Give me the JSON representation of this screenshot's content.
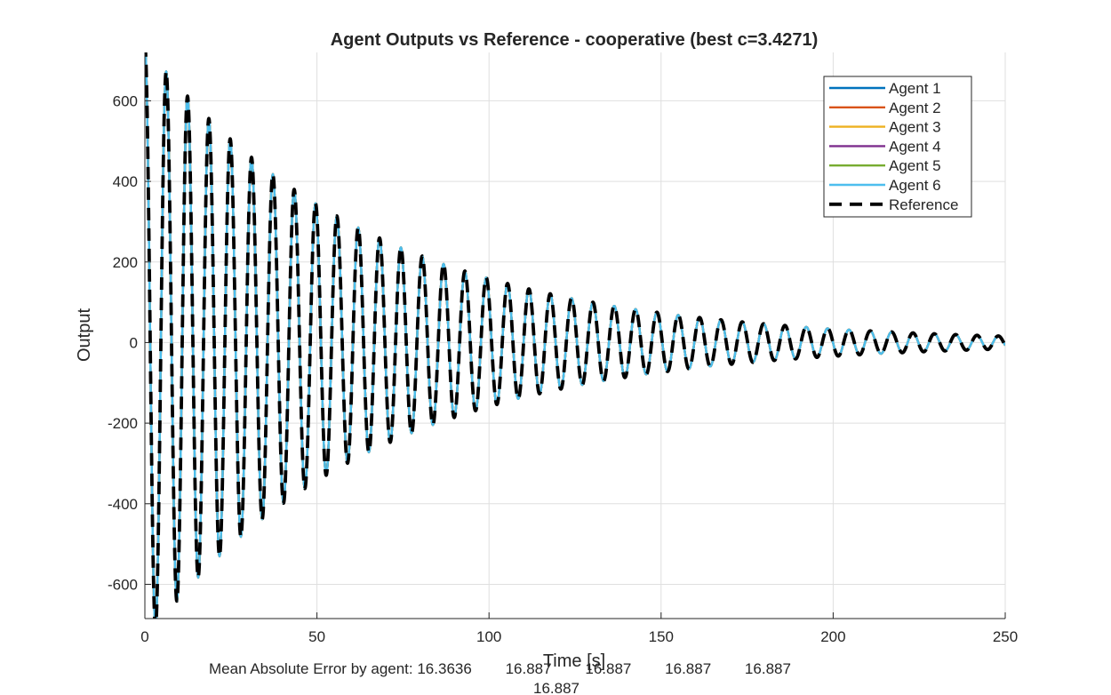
{
  "chart_data": {
    "type": "line",
    "title": "Agent Outputs vs Reference - cooperative (best c=3.4271)",
    "xlabel": "Time [s]",
    "ylabel": "Output",
    "xlim": [
      0,
      250
    ],
    "ylim": [
      -685,
      720
    ],
    "xticks": [
      0,
      50,
      100,
      150,
      200,
      250
    ],
    "yticks": [
      -600,
      -400,
      -200,
      0,
      200,
      400,
      600
    ],
    "grid": true,
    "legend_location": "top-right",
    "signal_model": {
      "description": "damped oscillation read from the plotted curve",
      "initial_amplitude": 740,
      "decay_rate_per_s": 0.01536,
      "period_s": 6.2,
      "samples_per_second": 10
    },
    "series": [
      {
        "name": "Agent 1",
        "color": "#0072BD",
        "style": "solid"
      },
      {
        "name": "Agent 2",
        "color": "#D95319",
        "style": "solid"
      },
      {
        "name": "Agent 3",
        "color": "#EDB120",
        "style": "solid"
      },
      {
        "name": "Agent 4",
        "color": "#7E2F8E",
        "style": "solid"
      },
      {
        "name": "Agent 5",
        "color": "#77AC30",
        "style": "solid"
      },
      {
        "name": "Agent 6",
        "color": "#4DBEEE",
        "style": "solid"
      },
      {
        "name": "Reference",
        "color": "#000000",
        "style": "dashed"
      }
    ],
    "footer": {
      "line1": "Mean Absolute Error by agent: 16.3636        16.887        16.887        16.887        16.887",
      "line2": "16.887"
    }
  }
}
